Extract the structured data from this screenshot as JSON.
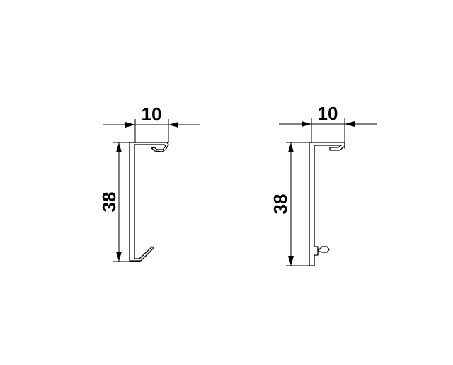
{
  "profiles": [
    {
      "id": "left",
      "width_label": "10",
      "height_label": "38"
    },
    {
      "id": "right",
      "width_label": "10",
      "height_label": "38"
    }
  ],
  "colors": {
    "background": "#ffffff",
    "line": "#000000"
  }
}
